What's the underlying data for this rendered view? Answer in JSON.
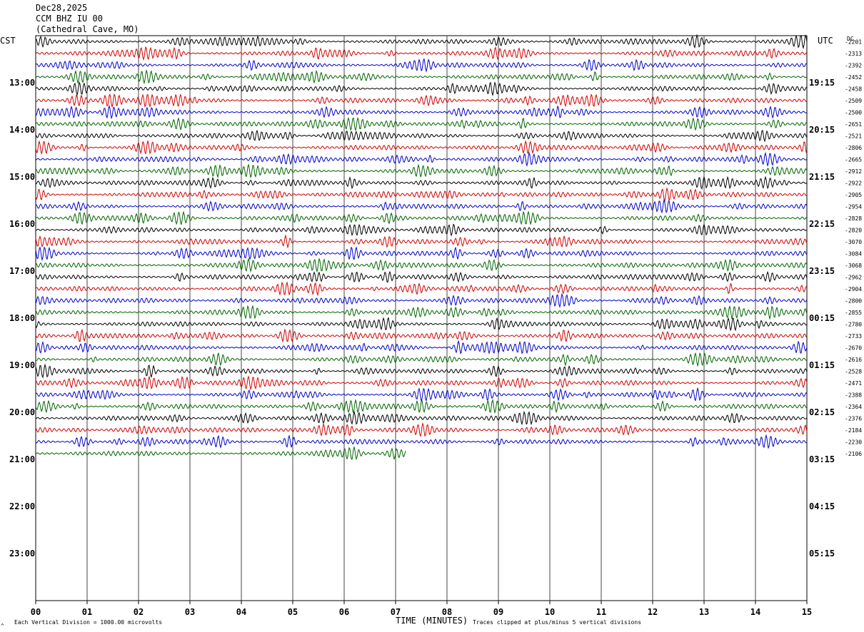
{
  "header": {
    "date": "Dec28,2025",
    "station": "CCM BHZ IU 00",
    "location": "(Cathedral Cave, MO)"
  },
  "left_timezone": "CST",
  "right_timezone": "UTC",
  "dc_label": "DC",
  "footer": {
    "scale_note": "Each Vertical Division = 1000.00 microvolts",
    "clip_note": "Traces clipped at plus/minus 5 vertical divisions",
    "corner_mark": "^"
  },
  "colors": {
    "trace_cycle": [
      "#000000",
      "#d40000",
      "#0000cc",
      "#006400"
    ],
    "grid": "#000000",
    "background": "#ffffff"
  },
  "chart_data": {
    "type": "helicorder",
    "xlabel": "TIME (MINUTES)",
    "x_ticks": [
      "00",
      "01",
      "02",
      "03",
      "04",
      "05",
      "06",
      "07",
      "08",
      "09",
      "10",
      "11",
      "12",
      "13",
      "14",
      "15"
    ],
    "xlim": [
      0,
      15
    ],
    "minutes_per_line": 15,
    "total_lines": 48,
    "left_hour_labels": [
      "13:00",
      "14:00",
      "15:00",
      "16:00",
      "17:00",
      "18:00",
      "19:00",
      "20:00",
      "21:00",
      "22:00",
      "23:00"
    ],
    "right_hour_labels": [
      "19:15",
      "20:15",
      "21:15",
      "22:15",
      "23:15",
      "00:15",
      "01:15",
      "02:15",
      "03:15",
      "04:15",
      "05:15"
    ],
    "hour_label_line_index": [
      4,
      8,
      12,
      16,
      20,
      24,
      28,
      32,
      36,
      40,
      44
    ],
    "dc_offsets": [
      "-2201",
      "-2313",
      "-2392",
      "-2452",
      "-2458",
      "-2509",
      "-2500",
      "-2651",
      "-2521",
      "-2806",
      "-2665",
      "-2912",
      "-2922",
      "-2905",
      "-2954",
      "-2828",
      "-2820",
      "-3070",
      "-3084",
      "-3068",
      "-2962",
      "-2904",
      "-2800",
      "-2855",
      "-2780",
      "-2733",
      "-2670",
      "-2616",
      "-2528",
      "-2471",
      "-2388",
      "-2364",
      "-2376",
      "-2184",
      "-2230",
      "-2106"
    ],
    "traces_complete": 35,
    "last_trace_end_minute": 7.2
  }
}
